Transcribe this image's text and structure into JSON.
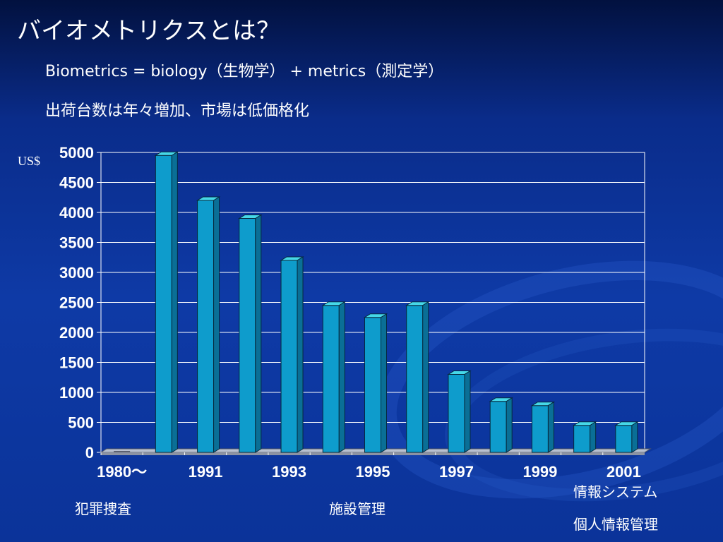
{
  "slide": {
    "title": "バイオメトリクスとは？",
    "bullet_1": "Biometrics = biology（生物学） + metrics（測定学）",
    "bullet_2": "出荷台数は年々増加、市場は低価格化"
  },
  "chart_data": {
    "type": "bar",
    "ylabel": "US$",
    "ylim": [
      0,
      5000
    ],
    "yticks": [
      0,
      500,
      1000,
      1500,
      2000,
      2500,
      3000,
      3500,
      4000,
      4500,
      5000
    ],
    "categories": [
      "1980～",
      "",
      "1991",
      "",
      "1993",
      "",
      "1995",
      "",
      "1997",
      "",
      "1999",
      "",
      "2001"
    ],
    "values": [
      0,
      4950,
      4200,
      3900,
      3200,
      2450,
      2250,
      2450,
      1300,
      850,
      780,
      450,
      450
    ],
    "x_tick_labels": [
      "1980～",
      "1991",
      "1993",
      "1995",
      "1997",
      "1999",
      "2001"
    ],
    "grid": true,
    "bar_color": "#0e9ccc",
    "bar_top_color": "#46d8e8",
    "bar_side_color": "#0a6f96"
  },
  "annotations": {
    "crime": "犯罪捜査",
    "facility": "施設管理",
    "info_system": "情報システム",
    "personal_info": "個人情報管理"
  }
}
